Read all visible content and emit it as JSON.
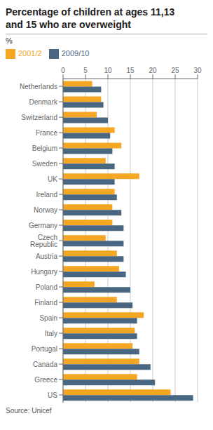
{
  "chart_data": {
    "type": "bar",
    "orientation": "horizontal",
    "title": "Percentage of children at ages 11,13\nand 15 who are overweight",
    "xlabel": "%",
    "annotations": [
      "Source: Unicef"
    ],
    "categories": [
      "Netherlands",
      "Denmark",
      "Switzerland",
      "France",
      "Belgium",
      "Sweden",
      "UK",
      "Ireland",
      "Norway",
      "Germany",
      "Czech Republic",
      "Austria",
      "Hungary",
      "Poland",
      "Finland",
      "Spain",
      "Italy",
      "Portugal",
      "Canada",
      "Greece",
      "US"
    ],
    "series": [
      {
        "name": "2001/2",
        "color": "#F5A623",
        "values": [
          6.5,
          8.5,
          7.5,
          11.5,
          13.0,
          9.5,
          17.0,
          11.5,
          11.0,
          11.0,
          9.5,
          12.0,
          12.5,
          7.0,
          12.0,
          18.0,
          16.0,
          15.5,
          17.0,
          16.5,
          24.0
        ]
      },
      {
        "name": "2009/10",
        "color": "#4A6781",
        "values": [
          8.5,
          9.0,
          10.0,
          10.5,
          11.0,
          11.5,
          11.5,
          12.0,
          13.0,
          13.5,
          13.5,
          13.5,
          14.0,
          15.0,
          15.5,
          16.5,
          16.5,
          17.0,
          19.5,
          20.5,
          29.0
        ]
      }
    ],
    "xlim": [
      0,
      30
    ],
    "xticks": [
      0,
      5,
      10,
      15,
      20,
      25,
      30
    ],
    "grid": true,
    "legend": "top-left"
  }
}
